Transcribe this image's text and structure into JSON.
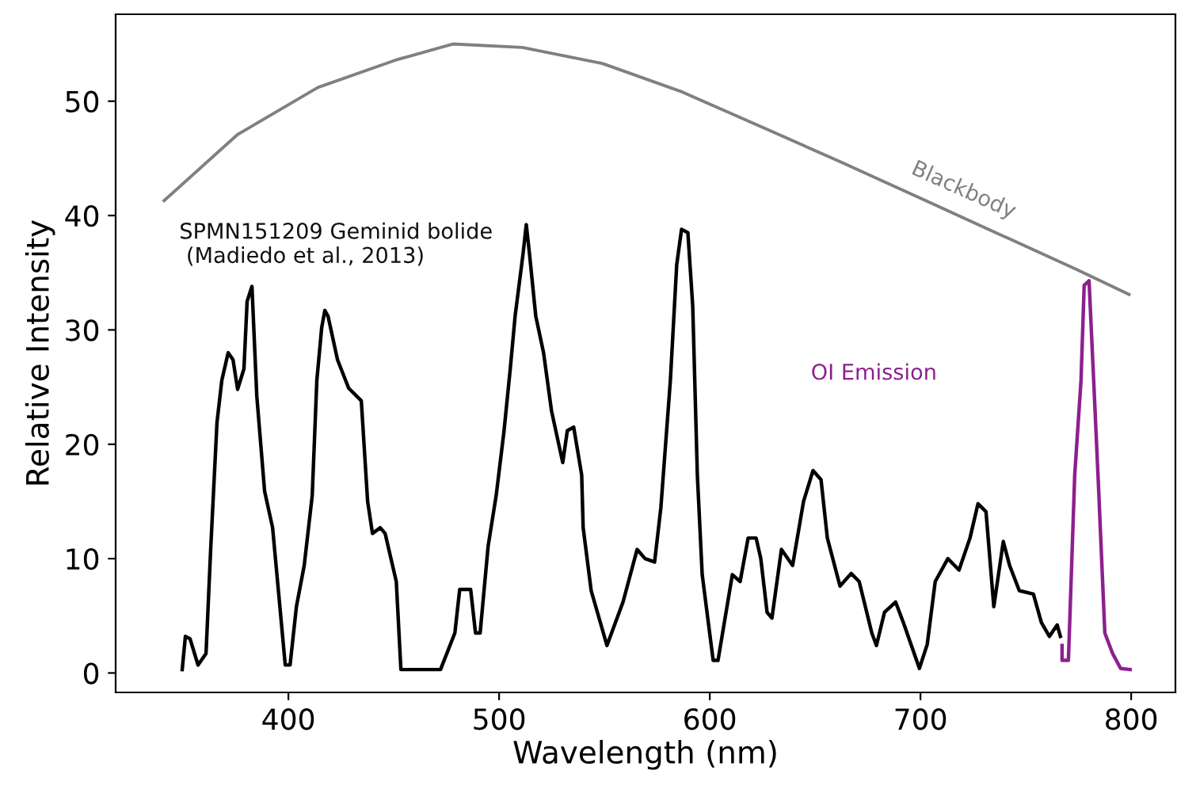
{
  "chart_data": {
    "type": "line",
    "xlabel": "Wavelength (nm)",
    "ylabel": "Relative Intensity",
    "xlim": [
      318,
      821
    ],
    "ylim": [
      -1.7,
      57.6
    ],
    "xticks": [
      400,
      500,
      600,
      700,
      800
    ],
    "yticks": [
      0,
      10,
      20,
      30,
      40,
      50
    ],
    "grid": false,
    "legend": false,
    "marker": "none",
    "line_style": "solid",
    "series": [
      {
        "name": "SPMN151209 Geminid bolide\n (Madiedo et al., 2013)",
        "color": "#000000",
        "x": [
          349.6,
          351.1,
          353.3,
          357.1,
          360.9,
          363.1,
          366.1,
          368.4,
          371.4,
          373.7,
          375.9,
          378.9,
          380.4,
          382.7,
          385.0,
          388.7,
          392.5,
          396.2,
          398.5,
          400.8,
          403.8,
          407.5,
          411.3,
          413.5,
          415.8,
          417.3,
          418.8,
          423.3,
          428.6,
          434.6,
          437.6,
          439.9,
          443.6,
          445.9,
          451.2,
          453.4,
          472.2,
          479.0,
          481.3,
          486.5,
          488.8,
          491.0,
          494.8,
          498.6,
          502.3,
          505.3,
          507.6,
          511.4,
          512.9,
          514.4,
          517.4,
          521.1,
          524.9,
          530.2,
          532.4,
          535.4,
          539.2,
          539.9,
          543.7,
          551.2,
          558.8,
          565.5,
          569.3,
          573.8,
          576.8,
          581.3,
          584.3,
          586.6,
          589.6,
          591.9,
          594.1,
          596.4,
          601.6,
          603.9,
          606.9,
          610.7,
          614.4,
          618.2,
          622.0,
          624.2,
          627.2,
          629.5,
          634.0,
          639.3,
          644.5,
          649.0,
          652.8,
          655.8,
          661.8,
          667.1,
          670.9,
          676.9,
          679.1,
          682.9,
          688.2,
          691.9,
          699.5,
          703.2,
          707.0,
          713.0,
          718.3,
          723.5,
          727.3,
          731.1,
          734.8,
          739.3,
          742.3,
          746.9,
          753.6,
          757.4,
          761.2,
          764.9,
          766.4
        ],
        "values": [
          0.3,
          3.2,
          3.0,
          0.7,
          1.7,
          10.8,
          21.9,
          25.6,
          28.0,
          27.4,
          24.8,
          26.6,
          32.5,
          33.8,
          24.2,
          15.9,
          12.7,
          5.3,
          0.7,
          0.7,
          5.8,
          9.4,
          15.5,
          25.6,
          30.2,
          31.7,
          31.2,
          27.4,
          24.9,
          23.8,
          15.0,
          12.2,
          12.7,
          12.2,
          8.0,
          0.3,
          0.3,
          3.5,
          7.3,
          7.3,
          3.5,
          3.5,
          11.1,
          15.5,
          21.1,
          26.6,
          31.2,
          36.7,
          39.2,
          36.7,
          31.2,
          28.0,
          22.9,
          18.4,
          21.2,
          21.5,
          17.3,
          12.7,
          7.2,
          2.4,
          6.2,
          10.8,
          10.0,
          9.7,
          14.5,
          25.6,
          35.7,
          38.8,
          38.5,
          32.1,
          17.3,
          8.6,
          1.1,
          1.1,
          4.4,
          8.6,
          8.0,
          11.8,
          11.8,
          10.0,
          5.3,
          4.8,
          10.8,
          9.4,
          15.0,
          17.7,
          16.9,
          11.8,
          7.6,
          8.7,
          8.0,
          3.5,
          2.4,
          5.3,
          6.2,
          4.4,
          0.4,
          2.5,
          8.0,
          10.0,
          9.0,
          11.8,
          14.8,
          14.1,
          5.8,
          11.5,
          9.4,
          7.2,
          6.9,
          4.4,
          3.2,
          4.2,
          3.2
        ]
      },
      {
        "name": "OI Emission",
        "color": "#8e1f8e",
        "x": [
          767.2,
          767.2,
          770.2,
          770.9,
          773.2,
          776.2,
          777.7,
          780.0,
          782.2,
          784.5,
          787.5,
          791.2,
          795.0,
          799.5
        ],
        "values": [
          2.4,
          1.1,
          1.1,
          4.8,
          17.3,
          25.6,
          33.9,
          34.3,
          25.6,
          16.3,
          3.5,
          1.7,
          0.4,
          0.3
        ]
      },
      {
        "name": "Blackbody",
        "color": "#808080",
        "x": [
          341,
          376,
          414,
          451,
          478,
          511,
          549,
          587,
          624,
          662,
          699,
          737,
          774,
          799
        ],
        "values": [
          41.3,
          47.1,
          51.2,
          53.6,
          55.0,
          54.7,
          53.3,
          50.8,
          47.8,
          44.7,
          41.6,
          38.4,
          35.3,
          33.1
        ]
      }
    ]
  }
}
